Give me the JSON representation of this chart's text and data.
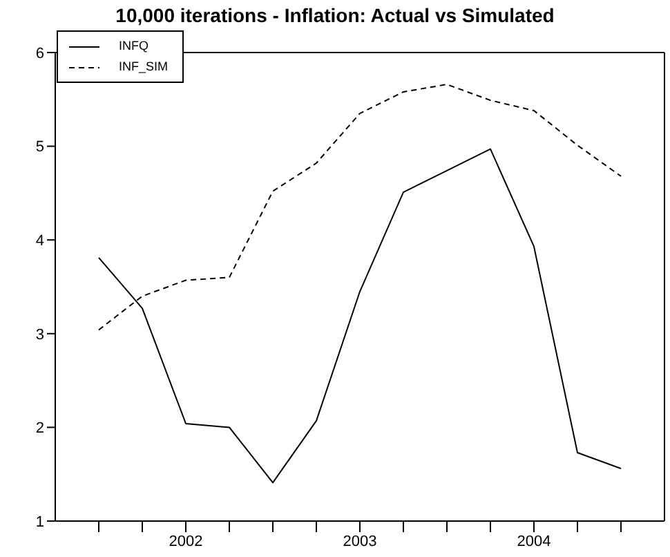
{
  "chart_data": {
    "type": "line",
    "title": "10,000 iterations - Inflation: Actual vs Simulated",
    "categories": [
      null,
      null,
      "2002",
      null,
      null,
      null,
      "2003",
      null,
      null,
      null,
      "2004",
      null,
      null
    ],
    "ylim": [
      1,
      6
    ],
    "yticks": [
      1,
      2,
      3,
      4,
      5,
      6
    ],
    "series": [
      {
        "name": "INFQ",
        "color": "#000000",
        "line_style": "solid",
        "values": [
          3.81,
          3.27,
          2.04,
          2.0,
          1.41,
          2.07,
          3.45,
          4.51,
          4.74,
          4.97,
          3.93,
          1.73,
          1.56
        ]
      },
      {
        "name": "INF_SIM",
        "color": "#000000",
        "line_style": "dashed",
        "values": [
          3.04,
          3.4,
          3.57,
          3.6,
          4.52,
          4.82,
          5.35,
          5.58,
          5.66,
          5.49,
          5.38,
          5.01,
          4.68
        ]
      }
    ],
    "legend": "top left",
    "grid": false,
    "marker": "none"
  }
}
